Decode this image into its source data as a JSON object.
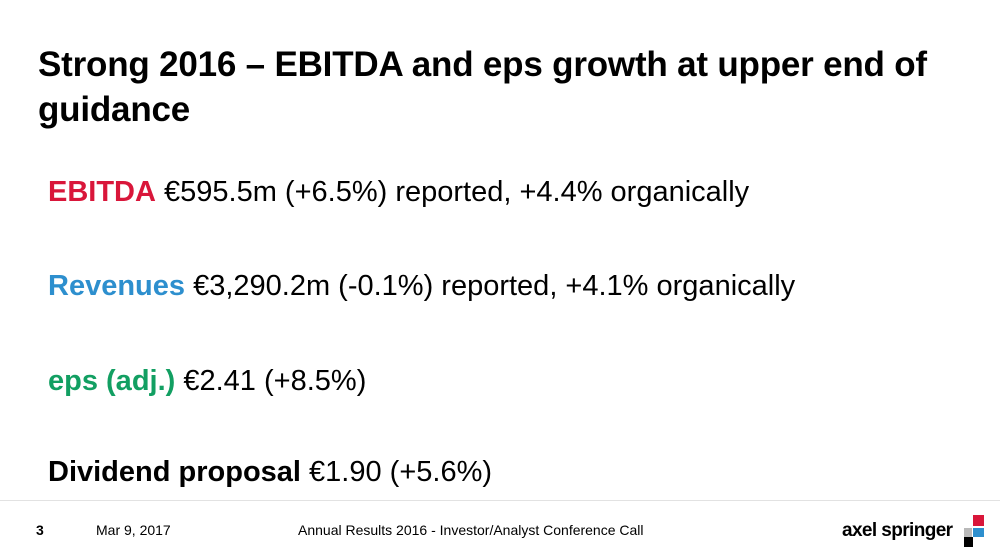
{
  "slide": {
    "title": "Strong 2016 – EBITDA and eps growth at upper end of guidance",
    "bullets": [
      {
        "keyword": "EBITDA",
        "text": " €595.5m (+6.5%) reported, +4.4% organically",
        "color": "#d9163a"
      },
      {
        "keyword": "Revenues",
        "text": " €3,290.2m (-0.1%) reported, +4.1% organically",
        "color": "#2d8fce"
      },
      {
        "keyword": "eps (adj.)",
        "text": " €2.41 (+8.5%)",
        "color": "#129f62"
      },
      {
        "keyword": "Dividend proposal",
        "text": " €1.90 (+5.6%)",
        "color": "#000000"
      }
    ]
  },
  "footer": {
    "page_number": "3",
    "date": "Mar 9, 2017",
    "event": "Annual Results 2016 - Investor/Analyst Conference Call"
  },
  "logo": {
    "text": "axel springer",
    "icon": "axel-springer-squares-icon",
    "colors": [
      "#d9163a",
      "#2d8fce",
      "#000000",
      "#b9b9b9"
    ]
  }
}
